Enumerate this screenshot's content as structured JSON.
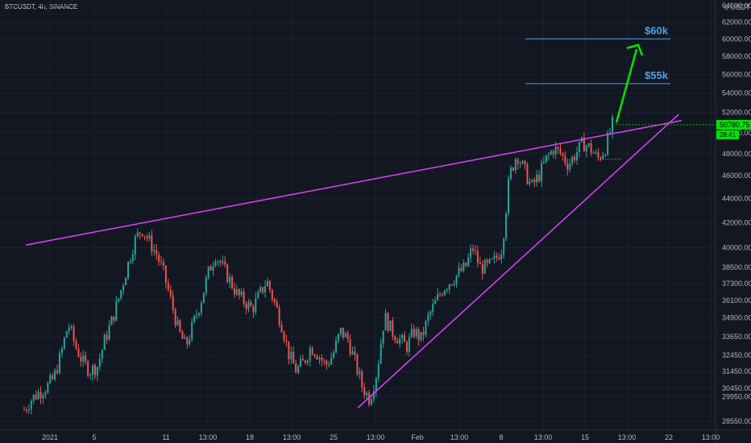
{
  "header": {
    "symbol_line": "BTCUSDT, 4h, BINANCE"
  },
  "axis": {
    "currency_label": "6 USDT ⊙"
  },
  "colors": {
    "background": "#131722",
    "up": "#26a69a",
    "down": "#ef5350",
    "trendline": "#e040fb",
    "target_line": "#4fa3e0",
    "arrow": "#00e600",
    "price_tag_bg": "#00e600",
    "grid": "#1e2230",
    "axis_line": "#2a2e39"
  },
  "price_tag": {
    "price": "50780.75",
    "countdown": "28:41"
  },
  "annotations": [
    {
      "text": "$60k",
      "price": 60000
    },
    {
      "text": "$55k",
      "price": 55000
    }
  ],
  "chart_data": {
    "type": "candlestick",
    "title": "",
    "xlabel": "",
    "ylabel": "",
    "y_scale": "log",
    "ylim": [
      28000,
      65000
    ],
    "y_ticks": [
      28550,
      29950,
      30450,
      31450,
      32450,
      33650,
      34900,
      36100,
      37300,
      38500,
      40000,
      42000,
      44000,
      46000,
      48000,
      50000,
      52000,
      54000,
      56000,
      58000,
      60000,
      62000,
      64000
    ],
    "y_tick_labels": [
      "28550.00",
      "29950.00",
      "30450.00",
      "31450.00",
      "32450.00",
      "33650.00",
      "34900.00",
      "36100.00",
      "37300.00",
      "38500.00",
      "40000.00",
      "42000.00",
      "44000.00",
      "46000.00",
      "48000.00",
      "50000.00",
      "52000.00",
      "54000.00",
      "56000.00",
      "58000.00",
      "60000.00",
      "62000.00",
      "64000.00"
    ],
    "x_tick_labels": [
      "2021",
      "5",
      "11",
      "13:00",
      "18",
      "13:00",
      "25",
      "13:00",
      "Feb",
      "13:00",
      "8",
      "13:00",
      "15",
      "13:00",
      "22",
      "13:00"
    ],
    "trendlines": [
      {
        "name": "resistance",
        "from": [
          "2021-01-01",
          40200
        ],
        "to": [
          "2021-02-22",
          51200
        ]
      },
      {
        "name": "support",
        "from": [
          "2021-01-27",
          29300
        ],
        "to": [
          "2021-02-22",
          51800
        ]
      }
    ],
    "horizontal_levels": [
      {
        "label": "$60k",
        "price": 60000
      },
      {
        "label": "$55k",
        "price": 55000
      }
    ],
    "candles_anchor_closes": [
      29200,
      29800,
      30200,
      30500,
      31000,
      32500,
      34500,
      33000,
      32000,
      31500,
      31800,
      33500,
      34800,
      36500,
      38500,
      40500,
      41500,
      40500,
      39500,
      38000,
      36000,
      34000,
      33000,
      34500,
      36000,
      38000,
      39500,
      38500,
      37500,
      36500,
      36000,
      35500,
      36500,
      37500,
      36000,
      34500,
      32500,
      31500,
      32000,
      33000,
      32500,
      31800,
      32500,
      34000,
      33500,
      32000,
      30500,
      29800,
      31500,
      35000,
      34000,
      33500,
      33000,
      34000,
      33500,
      35000,
      36000,
      37000,
      37500,
      38000,
      38500,
      40000,
      38500,
      38500,
      39000,
      40000,
      46000,
      48000,
      46500,
      45000,
      46000,
      47500,
      48500,
      48000,
      47000,
      48000,
      49000,
      48500,
      47500,
      48500,
      50800
    ]
  }
}
